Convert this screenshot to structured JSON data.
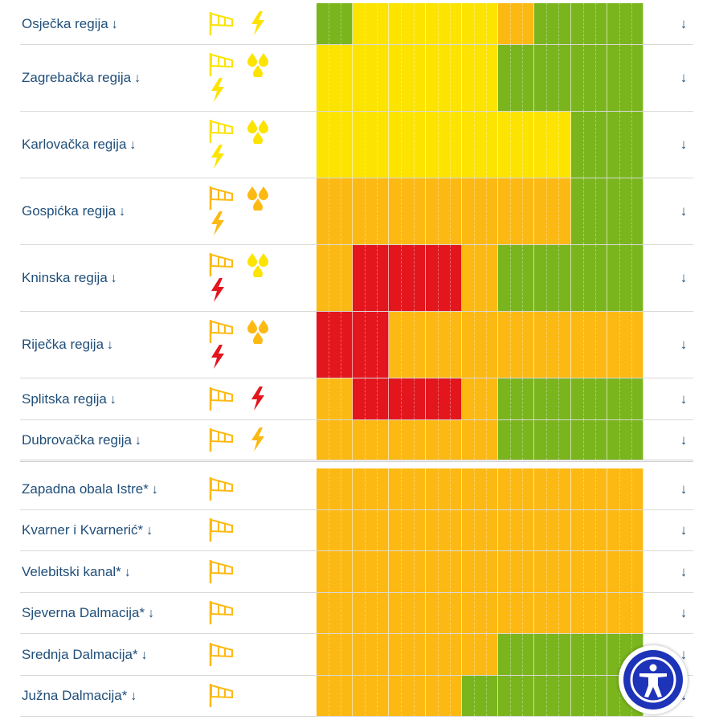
{
  "colors": {
    "green": "#7ab51e",
    "yellow": "#fce300",
    "orange": "#fdb913",
    "red": "#e3151d",
    "text": "#1f4e79",
    "accessibility": "#1d33b8"
  },
  "arrow_glyph": "↓",
  "rows": [
    {
      "label": "Osječka regija",
      "icons": [
        "wind-yellow",
        "lightning-yellow"
      ],
      "levels": [
        "green",
        "yellow",
        "yellow",
        "yellow",
        "yellow",
        "orange",
        "green",
        "green",
        "green"
      ]
    },
    {
      "label": "Zagrebačka regija",
      "icons": [
        "wind-yellow",
        "rain-yellow",
        "lightning-yellow"
      ],
      "levels": [
        "yellow",
        "yellow",
        "yellow",
        "yellow",
        "yellow",
        "green",
        "green",
        "green",
        "green"
      ]
    },
    {
      "label": "Karlovačka regija",
      "icons": [
        "wind-yellow",
        "rain-yellow",
        "lightning-yellow"
      ],
      "levels": [
        "yellow",
        "yellow",
        "yellow",
        "yellow",
        "yellow",
        "yellow",
        "yellow",
        "green",
        "green"
      ]
    },
    {
      "label": "Gospićka regija",
      "icons": [
        "wind-orange",
        "rain-orange",
        "lightning-orange"
      ],
      "levels": [
        "orange",
        "orange",
        "orange",
        "orange",
        "orange",
        "orange",
        "orange",
        "green",
        "green"
      ]
    },
    {
      "label": "Kninska regija",
      "icons": [
        "wind-orange",
        "rain-yellow",
        "lightning-red"
      ],
      "levels": [
        "orange",
        "red",
        "red",
        "red",
        "orange",
        "green",
        "green",
        "green",
        "green"
      ]
    },
    {
      "label": "Riječka regija",
      "icons": [
        "wind-orange",
        "rain-orange",
        "lightning-red"
      ],
      "levels": [
        "red",
        "red",
        "orange",
        "orange",
        "orange",
        "orange",
        "orange",
        "orange",
        "orange"
      ]
    },
    {
      "label": "Splitska regija",
      "icons": [
        "wind-orange",
        "lightning-red"
      ],
      "levels": [
        "orange",
        "red",
        "red",
        "red",
        "orange",
        "green",
        "green",
        "green",
        "green"
      ]
    },
    {
      "label": "Dubrovačka regija",
      "icons": [
        "wind-orange",
        "lightning-orange"
      ],
      "levels": [
        "orange",
        "orange",
        "orange",
        "orange",
        "orange",
        "green",
        "green",
        "green",
        "green"
      ]
    },
    {
      "label": "Zapadna obala Istre*",
      "icons": [
        "wind-orange"
      ],
      "levels": [
        "orange",
        "orange",
        "orange",
        "orange",
        "orange",
        "orange",
        "orange",
        "orange",
        "orange"
      ]
    },
    {
      "label": "Kvarner i Kvarnerić*",
      "icons": [
        "wind-orange"
      ],
      "levels": [
        "orange",
        "orange",
        "orange",
        "orange",
        "orange",
        "orange",
        "orange",
        "orange",
        "orange"
      ]
    },
    {
      "label": "Velebitski kanal*",
      "icons": [
        "wind-orange"
      ],
      "levels": [
        "orange",
        "orange",
        "orange",
        "orange",
        "orange",
        "orange",
        "orange",
        "orange",
        "orange"
      ]
    },
    {
      "label": "Sjeverna Dalmacija*",
      "icons": [
        "wind-orange"
      ],
      "levels": [
        "orange",
        "orange",
        "orange",
        "orange",
        "orange",
        "orange",
        "orange",
        "orange",
        "orange"
      ]
    },
    {
      "label": "Srednja Dalmacija*",
      "icons": [
        "wind-orange"
      ],
      "levels": [
        "orange",
        "orange",
        "orange",
        "orange",
        "orange",
        "green",
        "green",
        "green",
        "green"
      ]
    },
    {
      "label": "Južna Dalmacija*",
      "icons": [
        "wind-orange"
      ],
      "levels": [
        "orange",
        "orange",
        "orange",
        "orange",
        "green",
        "green",
        "green",
        "green",
        "green"
      ]
    }
  ]
}
